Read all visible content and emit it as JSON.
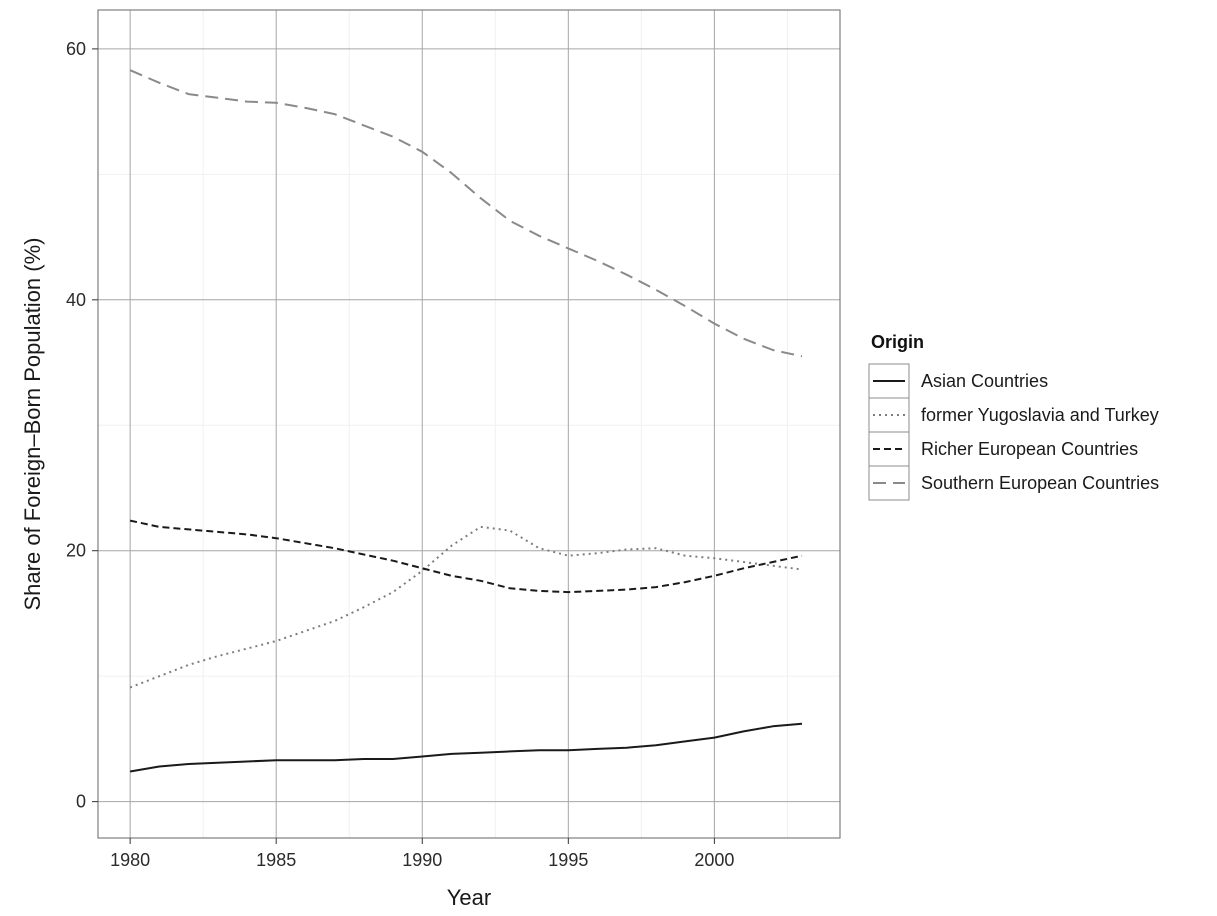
{
  "chart_data": {
    "type": "line",
    "title": "",
    "xlabel": "Year",
    "ylabel": "Share of Foreign–Born Population (%)",
    "xlim": [
      1978.9,
      2004.3
    ],
    "ylim": [
      -2.9,
      63.1
    ],
    "x_ticks": [
      1980,
      1985,
      1990,
      1995,
      2000
    ],
    "y_ticks": [
      0,
      20,
      40,
      60
    ],
    "grid": true,
    "legend": {
      "title": "Origin",
      "position": "right"
    },
    "series": [
      {
        "name": "Asian Countries",
        "color": "#1a1a1a",
        "dash": "solid",
        "x": [
          1980,
          1981,
          1982,
          1983,
          1984,
          1985,
          1986,
          1987,
          1988,
          1989,
          1990,
          1991,
          1992,
          1993,
          1994,
          1995,
          1996,
          1997,
          1998,
          1999,
          2000,
          2001,
          2002,
          2003
        ],
        "y": [
          2.4,
          2.8,
          3.0,
          3.1,
          3.2,
          3.3,
          3.3,
          3.3,
          3.4,
          3.4,
          3.6,
          3.8,
          3.9,
          4.0,
          4.1,
          4.1,
          4.2,
          4.3,
          4.5,
          4.8,
          5.1,
          5.6,
          6.0,
          6.2
        ]
      },
      {
        "name": "former Yugoslavia and Turkey",
        "color": "#7d7d7d",
        "dash": "dotted",
        "x": [
          1980,
          1981,
          1982,
          1983,
          1984,
          1985,
          1986,
          1987,
          1988,
          1989,
          1990,
          1991,
          1992,
          1993,
          1994,
          1995,
          1996,
          1997,
          1998,
          1999,
          2000,
          2001,
          2002,
          2003
        ],
        "y": [
          9.1,
          10.0,
          10.9,
          11.6,
          12.2,
          12.8,
          13.6,
          14.4,
          15.5,
          16.7,
          18.4,
          20.4,
          21.9,
          21.6,
          20.2,
          19.6,
          19.8,
          20.1,
          20.2,
          19.6,
          19.4,
          19.1,
          18.8,
          18.5
        ]
      },
      {
        "name": "Richer European Countries",
        "color": "#1a1a1a",
        "dash": "dashed",
        "x": [
          1980,
          1981,
          1982,
          1983,
          1984,
          1985,
          1986,
          1987,
          1988,
          1989,
          1990,
          1991,
          1992,
          1993,
          1994,
          1995,
          1996,
          1997,
          1998,
          1999,
          2000,
          2001,
          2002,
          2003
        ],
        "y": [
          22.4,
          21.9,
          21.7,
          21.5,
          21.3,
          21.0,
          20.6,
          20.2,
          19.7,
          19.2,
          18.6,
          18.0,
          17.6,
          17.0,
          16.8,
          16.7,
          16.8,
          16.9,
          17.1,
          17.5,
          18.0,
          18.6,
          19.1,
          19.6
        ]
      },
      {
        "name": "Southern European Countries",
        "color": "#8a8a8a",
        "dash": "longdash",
        "x": [
          1980,
          1981,
          1982,
          1983,
          1984,
          1985,
          1986,
          1987,
          1988,
          1989,
          1990,
          1991,
          1992,
          1993,
          1994,
          1995,
          1996,
          1997,
          1998,
          1999,
          2000,
          2001,
          2002,
          2003
        ],
        "y": [
          58.3,
          57.3,
          56.4,
          56.1,
          55.8,
          55.7,
          55.3,
          54.8,
          53.9,
          53.0,
          51.8,
          50.1,
          48.1,
          46.3,
          45.1,
          44.1,
          43.1,
          42.0,
          40.8,
          39.5,
          38.1,
          36.9,
          36.0,
          35.5
        ]
      }
    ]
  }
}
